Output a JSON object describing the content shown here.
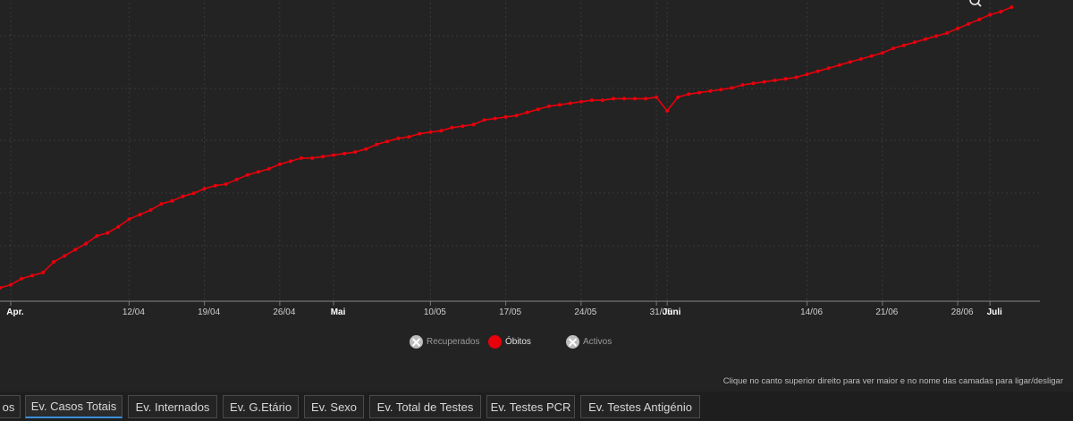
{
  "chart_data": {
    "type": "line",
    "title": "",
    "x_tick_labels": [
      "Apr.",
      "12/04",
      "19/04",
      "26/04",
      "Mai",
      "10/05",
      "17/05",
      "24/05",
      "31/05",
      "Juni",
      "14/06",
      "21/06",
      "28/06",
      "Juli"
    ],
    "x_tick_bold": [
      "Apr.",
      "Mai",
      "Juni",
      "Juli"
    ],
    "x_range": [
      "2020-03-31",
      "2020-07-03"
    ],
    "y_axis_labels_visible": false,
    "grid": true,
    "series": [
      {
        "name": "Óbitos",
        "color": "#e8000b",
        "x": [
          "2020-03-31",
          "2020-04-01",
          "2020-04-02",
          "2020-04-03",
          "2020-04-04",
          "2020-04-05",
          "2020-04-06",
          "2020-04-07",
          "2020-04-08",
          "2020-04-09",
          "2020-04-10",
          "2020-04-11",
          "2020-04-12",
          "2020-04-13",
          "2020-04-14",
          "2020-04-15",
          "2020-04-16",
          "2020-04-17",
          "2020-04-18",
          "2020-04-19",
          "2020-04-20",
          "2020-04-21",
          "2020-04-22",
          "2020-04-23",
          "2020-04-24",
          "2020-04-25",
          "2020-04-26",
          "2020-04-27",
          "2020-04-28",
          "2020-04-29",
          "2020-04-30",
          "2020-05-01",
          "2020-05-02",
          "2020-05-03",
          "2020-05-04",
          "2020-05-05",
          "2020-05-06",
          "2020-05-07",
          "2020-05-08",
          "2020-05-09",
          "2020-05-10",
          "2020-05-11",
          "2020-05-12",
          "2020-05-13",
          "2020-05-14",
          "2020-05-15",
          "2020-05-16",
          "2020-05-17",
          "2020-05-18",
          "2020-05-19",
          "2020-05-20",
          "2020-05-21",
          "2020-05-22",
          "2020-05-23",
          "2020-05-24",
          "2020-05-25",
          "2020-05-26",
          "2020-05-27",
          "2020-05-28",
          "2020-05-29",
          "2020-05-30",
          "2020-05-31",
          "2020-06-01",
          "2020-06-02",
          "2020-06-03",
          "2020-06-04",
          "2020-06-05",
          "2020-06-06",
          "2020-06-07",
          "2020-06-08",
          "2020-06-09",
          "2020-06-10",
          "2020-06-11",
          "2020-06-12",
          "2020-06-13",
          "2020-06-14",
          "2020-06-15",
          "2020-06-16",
          "2020-06-17",
          "2020-06-18",
          "2020-06-19",
          "2020-06-20",
          "2020-06-21",
          "2020-06-22",
          "2020-06-23",
          "2020-06-24",
          "2020-06-25",
          "2020-06-26",
          "2020-06-27",
          "2020-06-28",
          "2020-06-29",
          "2020-06-30",
          "2020-07-01",
          "2020-07-02",
          "2020-07-03"
        ],
        "values": [
          7,
          9,
          13,
          15,
          17,
          24,
          28,
          32,
          36,
          41,
          43,
          47,
          52,
          55,
          58,
          62,
          64,
          67,
          69,
          72,
          74,
          75,
          78,
          81,
          83,
          85,
          88,
          90,
          92,
          92,
          93,
          94,
          95,
          96,
          98,
          101,
          103,
          105,
          106,
          108,
          109,
          110,
          112,
          113,
          114,
          117,
          118,
          119,
          120,
          122,
          124,
          126,
          127,
          128,
          129,
          130,
          130,
          131,
          131,
          131,
          131,
          132,
          123,
          132,
          134,
          135,
          136,
          137,
          138,
          140,
          141,
          142,
          143,
          144,
          145,
          147,
          149,
          151,
          153,
          155,
          157,
          159,
          161,
          164,
          166,
          168,
          170,
          172,
          174,
          177,
          180,
          183,
          186,
          188,
          191
        ]
      }
    ]
  },
  "legend": {
    "items": [
      {
        "label": "Recuperados",
        "enabled": false
      },
      {
        "label": "Óbitos",
        "enabled": true
      },
      {
        "label": "Activos",
        "enabled": false
      }
    ]
  },
  "hint_text": "Clique no canto superior direito para ver maior e no nome das camadas para ligar/desligar",
  "tabs": [
    {
      "label": "os",
      "active": false
    },
    {
      "label": "Ev. Casos Totais",
      "active": true
    },
    {
      "label": "Ev. Internados",
      "active": false
    },
    {
      "label": "Ev. G.Etário",
      "active": false
    },
    {
      "label": "Ev. Sexo",
      "active": false
    },
    {
      "label": "Ev. Total de Testes",
      "active": false
    },
    {
      "label": "Ev. Testes PCR",
      "active": false
    },
    {
      "label": "Ev. Testes Antigénio",
      "active": false
    }
  ],
  "icons": {
    "zoom": "zoom-icon"
  }
}
